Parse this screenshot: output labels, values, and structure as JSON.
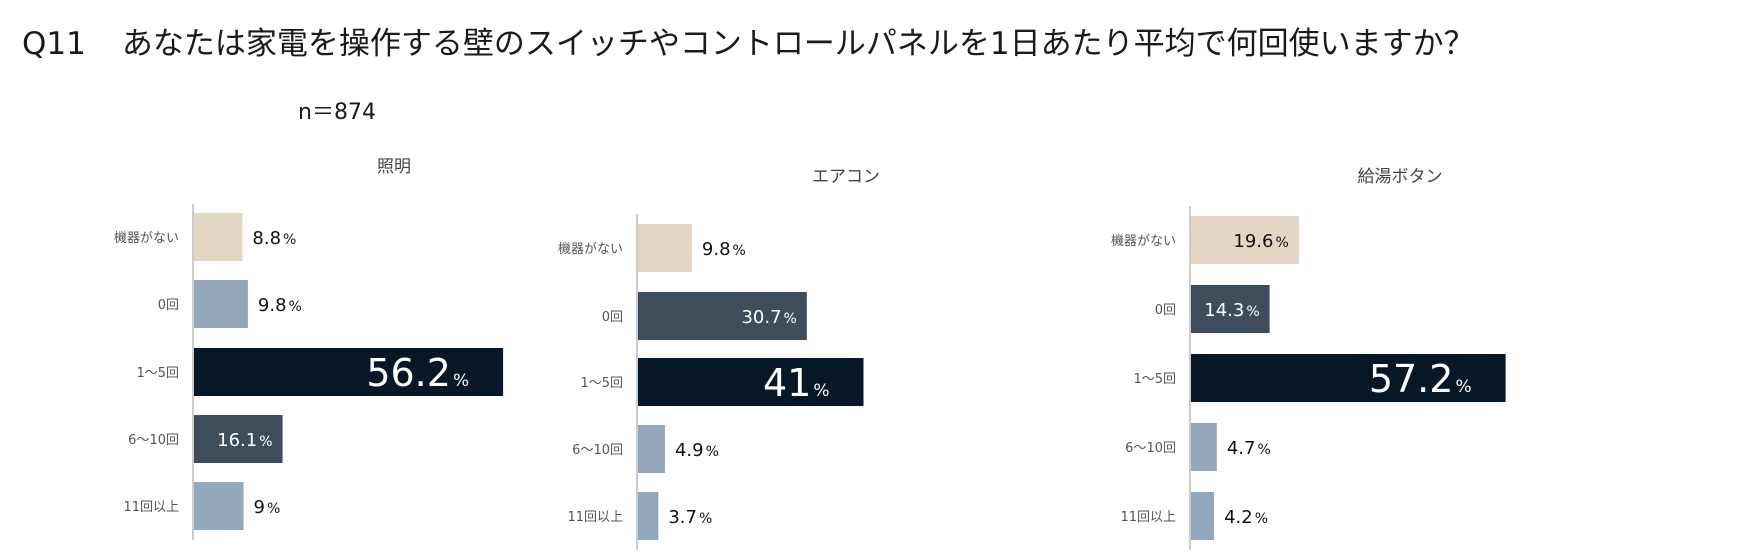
{
  "header": {
    "question_number": "Q11",
    "question_text": "あなたは家電を操作する壁のスイッチやコントロールパネルを1日あたり平均で何回使いますか？",
    "sample_size": "n＝874"
  },
  "colors": {
    "none": "#e3d6c2",
    "light": "#93a8bd",
    "mid": "#3e4d5c",
    "dark": "#061827",
    "axis": "#cccccc"
  },
  "chart_data": [
    {
      "type": "bar",
      "orientation": "horizontal",
      "title": "照明",
      "categories": [
        "機器がない",
        "0回",
        "1〜5回",
        "6〜10回",
        "11回以上"
      ],
      "values": [
        8.8,
        9.8,
        56.2,
        16.1,
        9
      ],
      "labels": [
        "8.8",
        "9.8",
        "56.2",
        "16.1",
        "9"
      ],
      "unit": "%",
      "bar_colors": [
        "none",
        "light",
        "dark",
        "mid",
        "light"
      ]
    },
    {
      "type": "bar",
      "orientation": "horizontal",
      "title": "エアコン",
      "categories": [
        "機器がない",
        "0回",
        "1〜5回",
        "6〜10回",
        "11回以上"
      ],
      "values": [
        9.8,
        30.7,
        41,
        4.9,
        3.7
      ],
      "labels": [
        "9.8",
        "30.7",
        "41",
        "4.9",
        "3.7"
      ],
      "unit": "%",
      "bar_colors": [
        "none",
        "mid",
        "dark",
        "light",
        "light"
      ]
    },
    {
      "type": "bar",
      "orientation": "horizontal",
      "title": "給湯ボタン",
      "categories": [
        "機器がない",
        "0回",
        "1〜5回",
        "6〜10回",
        "11回以上"
      ],
      "values": [
        19.6,
        14.3,
        57.2,
        4.7,
        4.2
      ],
      "labels": [
        "19.6",
        "14.3",
        "57.2",
        "4.7",
        "4.2"
      ],
      "unit": "%",
      "bar_colors": [
        "none",
        "mid",
        "dark",
        "light",
        "light"
      ]
    }
  ]
}
